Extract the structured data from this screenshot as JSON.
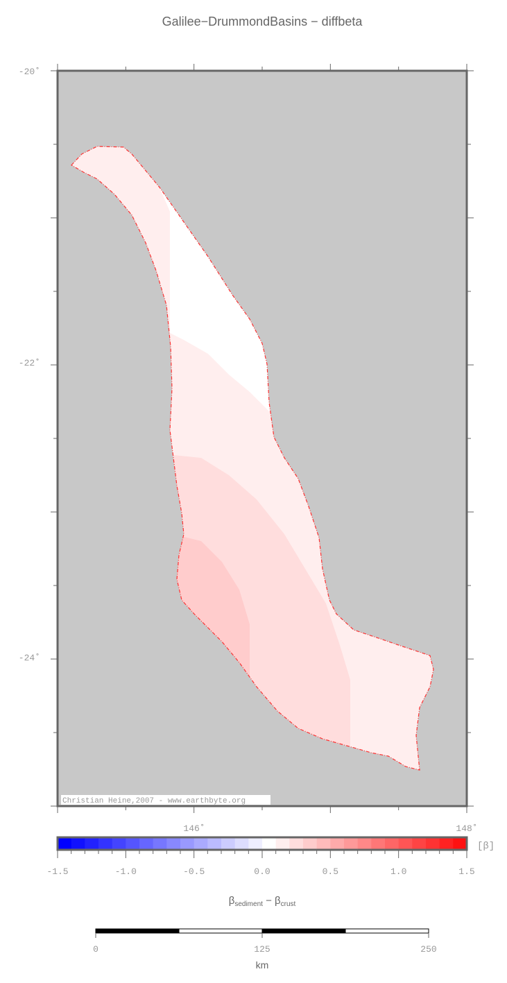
{
  "title": "Galilee−DrummondBasins − diffbeta",
  "map": {
    "lon_range": [
      145,
      148
    ],
    "lat_range": [
      -25,
      -20
    ],
    "background_color": "#c8c8c8",
    "lat_labels": [
      "-20˚",
      "-22˚",
      "-24˚"
    ],
    "lon_labels": [
      "146˚",
      "148˚"
    ],
    "outline_color": "#ff3333",
    "region_colors": {
      "base": "#ffeeee",
      "low": "#ffffff",
      "mid": "#ffdddd",
      "high": "#ffcccc"
    },
    "credit": "Christian Heine,2007 - www.earthbyte.org"
  },
  "colorbar": {
    "min": -1.5,
    "max": 1.5,
    "step": 0.1,
    "neg_color": "#0000ff",
    "zero_color": "#ffffff",
    "pos_color": "#ff0000",
    "tick_labels": [
      "-1.5",
      "-1.0",
      "-0.5",
      "0.0",
      "0.5",
      "1.0",
      "1.5"
    ],
    "unit": "[β]",
    "label_main": "β",
    "label_sub1": "sediment",
    "label_mid": " − β",
    "label_sub2": "crust"
  },
  "scalebar": {
    "labels": [
      "0",
      "125",
      "250"
    ],
    "unit": "km"
  }
}
